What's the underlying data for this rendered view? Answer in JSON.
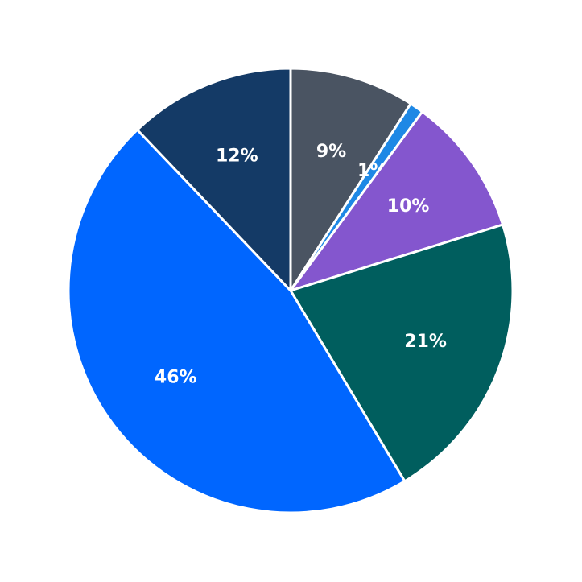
{
  "chart_data": {
    "type": "pie",
    "series": [
      {
        "values": [
          9,
          1,
          10,
          21,
          46,
          12
        ],
        "value_labels": [
          "9%",
          "1%",
          "10%",
          "21%",
          "46%",
          "12%"
        ],
        "colors": [
          "#4a5462",
          "#1e88e5",
          "#8456ce",
          "#005e5e",
          "#0066ff",
          "#143a66"
        ]
      }
    ]
  }
}
